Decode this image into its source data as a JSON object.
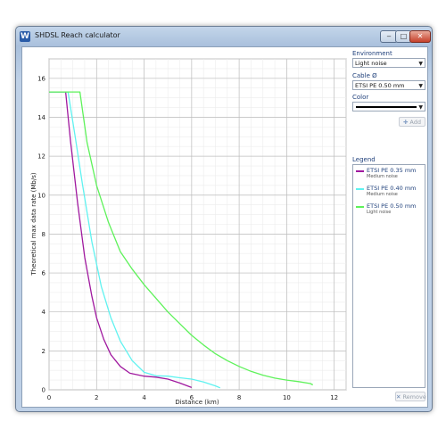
{
  "window": {
    "title": "SHDSL Reach calculator",
    "icon": "W",
    "controls": {
      "minimize": "‒",
      "maximize": "□",
      "close": "✕"
    }
  },
  "panel": {
    "environment_label": "Environment",
    "environment_value": "Light noise",
    "cable_label": "Cable Ø",
    "cable_value": "ETSI PE 0.50 mm",
    "color_label": "Color",
    "color_value": "#000000",
    "add_label": "Add",
    "legend_label": "Legend",
    "remove_label": "Remove"
  },
  "legend": [
    {
      "name": "ETSI PE 0.35 mm",
      "sub": "Medium noise",
      "color": "#a0199f"
    },
    {
      "name": "ETSI PE 0.40 mm",
      "sub": "Medium noise",
      "color": "#5ff2f0"
    },
    {
      "name": "ETSI PE 0.50 mm",
      "sub": "Light noise",
      "color": "#5ef25a"
    }
  ],
  "chart_data": {
    "type": "line",
    "xlabel": "Distance (km)",
    "ylabel": "Theoretical max data rate (Mb/s)",
    "xlim": [
      0,
      12.5
    ],
    "ylim": [
      0,
      17
    ],
    "xticks": [
      0,
      2,
      4,
      6,
      8,
      10,
      12
    ],
    "yticks": [
      0,
      2,
      4,
      6,
      8,
      10,
      12,
      14,
      16
    ],
    "grid": true,
    "series": [
      {
        "name": "ETSI PE 0.35 mm",
        "color": "#a0199f",
        "x": [
          0,
          0.7,
          0.9,
          1.2,
          1.5,
          1.8,
          2.0,
          2.3,
          2.6,
          3.0,
          3.4,
          4.0,
          4.5,
          5.0,
          5.5,
          6.0
        ],
        "y": [
          15.3,
          15.3,
          12.8,
          9.6,
          6.8,
          4.8,
          3.7,
          2.6,
          1.8,
          1.2,
          0.85,
          0.7,
          0.65,
          0.55,
          0.35,
          0.12
        ]
      },
      {
        "name": "ETSI PE 0.40 mm",
        "color": "#5ff2f0",
        "x": [
          0,
          0.8,
          1.1,
          1.4,
          1.8,
          2.2,
          2.6,
          3.0,
          3.5,
          4.0,
          4.5,
          5.0,
          5.5,
          6.0,
          6.5,
          7.0,
          7.2
        ],
        "y": [
          15.3,
          15.3,
          13.0,
          10.6,
          7.6,
          5.3,
          3.7,
          2.5,
          1.5,
          0.9,
          0.72,
          0.7,
          0.62,
          0.55,
          0.4,
          0.2,
          0.1
        ]
      },
      {
        "name": "ETSI PE 0.50 mm",
        "color": "#5ef25a",
        "x": [
          0,
          1.3,
          1.6,
          2.0,
          2.5,
          3.0,
          3.5,
          4.0,
          4.5,
          5.0,
          5.5,
          6.0,
          6.5,
          7.0,
          7.5,
          8.0,
          8.5,
          9.0,
          9.5,
          10.0,
          10.5,
          11.0,
          11.1
        ],
        "y": [
          15.3,
          15.3,
          12.7,
          10.5,
          8.6,
          7.1,
          6.2,
          5.4,
          4.7,
          4.0,
          3.4,
          2.8,
          2.3,
          1.85,
          1.5,
          1.2,
          0.95,
          0.75,
          0.6,
          0.5,
          0.42,
          0.32,
          0.25
        ]
      }
    ]
  }
}
